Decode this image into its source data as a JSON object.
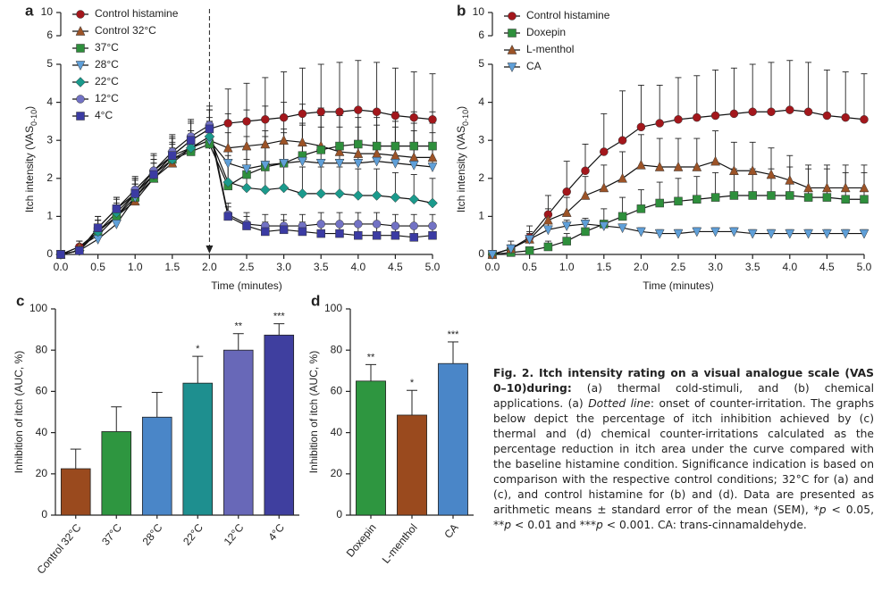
{
  "chart_data": [
    {
      "type": "line",
      "label": "a",
      "ylabel": [
        "Itch intensity (VAS",
        "0-10",
        ")"
      ],
      "xlabel": "Time (minutes)",
      "x": [
        0,
        0.25,
        0.5,
        0.75,
        1,
        1.25,
        1.5,
        1.75,
        2,
        2.25,
        2.5,
        2.75,
        3,
        3.25,
        3.5,
        3.75,
        4,
        4.25,
        4.5,
        4.75,
        5
      ],
      "xlim": [
        0,
        5
      ],
      "xticks": [
        {
          "value": 0,
          "label": "0.0"
        },
        0.5,
        {
          "value": 1,
          "label": "1.0"
        },
        1.5,
        {
          "value": 2,
          "label": "2.0"
        },
        2.5,
        {
          "value": 3,
          "label": "3.0"
        },
        3.5,
        {
          "value": 4,
          "label": "4.0"
        },
        4.5,
        {
          "value": 5,
          "label": "5.0"
        }
      ],
      "ylim": [
        0,
        5
      ],
      "yticks": [
        0,
        1,
        2,
        3,
        4,
        5
      ],
      "ylim_top": [
        6,
        10
      ],
      "yticks_top": [
        6,
        10
      ],
      "vline": 2,
      "series": [
        {
          "name": "Control histamine",
          "color": "#a3171c",
          "marker": "circle",
          "values": [
            0,
            0.2,
            0.5,
            1.0,
            1.6,
            2.2,
            2.6,
            3.0,
            3.3,
            3.45,
            3.5,
            3.55,
            3.6,
            3.7,
            3.75,
            3.75,
            3.8,
            3.75,
            3.65,
            3.6,
            3.55
          ],
          "errors": [
            0.1,
            0.15,
            0.3,
            0.35,
            0.4,
            0.45,
            0.5,
            0.5,
            0.5,
            0.9,
            1.0,
            1.1,
            1.2,
            1.2,
            1.25,
            1.3,
            1.3,
            1.3,
            1.25,
            1.2,
            1.2
          ]
        },
        {
          "name": "Control 32°C",
          "color": "#9c5327",
          "marker": "triangle-up",
          "values": [
            0,
            0.2,
            0.6,
            1.0,
            1.4,
            2.0,
            2.4,
            2.8,
            3.0,
            2.8,
            2.85,
            2.9,
            3.0,
            2.95,
            2.85,
            2.7,
            2.65,
            2.65,
            2.6,
            2.55,
            2.55
          ],
          "errors": [
            0.1,
            0.15,
            0.3,
            0.3,
            0.35,
            0.4,
            0.4,
            0.45,
            0.5,
            0.9,
            0.95,
            1.0,
            1.0,
            1.0,
            1.0,
            0.95,
            0.95,
            0.95,
            0.9,
            0.9,
            0.9
          ]
        },
        {
          "name": "37°C",
          "color": "#2e8f3c",
          "marker": "square",
          "values": [
            0,
            0.1,
            0.6,
            1.0,
            1.5,
            2.0,
            2.5,
            2.7,
            2.9,
            1.8,
            2.1,
            2.3,
            2.4,
            2.6,
            2.75,
            2.85,
            2.9,
            2.85,
            2.85,
            2.85,
            2.85
          ],
          "errors": [
            0.1,
            0.1,
            0.3,
            0.3,
            0.35,
            0.4,
            0.4,
            0.45,
            0.45,
            0.6,
            0.7,
            0.8,
            0.8,
            0.85,
            0.9,
            0.9,
            0.95,
            0.95,
            0.9,
            0.9,
            0.9
          ]
        },
        {
          "name": "28°C",
          "color": "#5f9fd8",
          "marker": "triangle-down",
          "values": [
            0,
            0.1,
            0.4,
            0.8,
            1.5,
            2.1,
            2.6,
            2.8,
            3.0,
            2.4,
            2.25,
            2.35,
            2.4,
            2.45,
            2.4,
            2.4,
            2.4,
            2.45,
            2.4,
            2.35,
            2.3
          ],
          "errors": [
            0.1,
            0.1,
            0.2,
            0.3,
            0.35,
            0.4,
            0.45,
            0.45,
            0.5,
            0.8,
            0.85,
            0.9,
            0.9,
            0.95,
            0.95,
            0.95,
            0.95,
            0.95,
            0.95,
            0.9,
            0.9
          ]
        },
        {
          "name": "22°C",
          "color": "#1b9a8c",
          "marker": "diamond",
          "values": [
            0,
            0.1,
            0.6,
            1.1,
            1.6,
            2.1,
            2.5,
            2.8,
            3.1,
            1.9,
            1.75,
            1.7,
            1.75,
            1.6,
            1.6,
            1.6,
            1.55,
            1.55,
            1.5,
            1.45,
            1.35
          ],
          "errors": [
            0.1,
            0.1,
            0.3,
            0.35,
            0.4,
            0.4,
            0.45,
            0.45,
            0.5,
            0.7,
            0.75,
            0.75,
            0.75,
            0.7,
            0.7,
            0.7,
            0.7,
            0.7,
            0.65,
            0.65,
            0.65
          ]
        },
        {
          "name": "12°C",
          "color": "#7272c4",
          "marker": "circle",
          "values": [
            0,
            0.1,
            0.7,
            1.2,
            1.7,
            2.2,
            2.7,
            3.1,
            3.4,
            1.05,
            0.8,
            0.75,
            0.75,
            0.75,
            0.8,
            0.8,
            0.8,
            0.8,
            0.75,
            0.75,
            0.75
          ],
          "errors": [
            0.1,
            0.1,
            0.3,
            0.3,
            0.35,
            0.4,
            0.45,
            0.45,
            0.5,
            0.3,
            0.3,
            0.3,
            0.3,
            0.3,
            0.3,
            0.3,
            0.3,
            0.3,
            0.3,
            0.3,
            0.3
          ]
        },
        {
          "name": "4°C",
          "color": "#3b3ba3",
          "marker": "square",
          "values": [
            0,
            0.1,
            0.7,
            1.2,
            1.6,
            2.1,
            2.6,
            3.0,
            3.3,
            1.0,
            0.75,
            0.6,
            0.65,
            0.6,
            0.55,
            0.55,
            0.5,
            0.5,
            0.5,
            0.45,
            0.5
          ],
          "errors": [
            0.1,
            0.1,
            0.3,
            0.3,
            0.35,
            0.4,
            0.45,
            0.45,
            0.5,
            0.25,
            0.25,
            0.25,
            0.25,
            0.25,
            0.25,
            0.25,
            0.25,
            0.25,
            0.25,
            0.25,
            0.25
          ]
        }
      ]
    },
    {
      "type": "line",
      "label": "b",
      "ylabel": [
        "Itch intensity (VAS",
        "0-10",
        ")"
      ],
      "xlabel": "Time (minutes)",
      "x": [
        0,
        0.25,
        0.5,
        0.75,
        1,
        1.25,
        1.5,
        1.75,
        2,
        2.25,
        2.5,
        2.75,
        3,
        3.25,
        3.5,
        3.75,
        4,
        4.25,
        4.5,
        4.75,
        5
      ],
      "xlim": [
        0,
        5
      ],
      "xticks": [
        {
          "value": 0,
          "label": "0.0"
        },
        0.5,
        {
          "value": 1,
          "label": "1.0"
        },
        1.5,
        {
          "value": 2,
          "label": "2.0"
        },
        2.5,
        {
          "value": 3,
          "label": "3.0"
        },
        3.5,
        {
          "value": 4,
          "label": "4.0"
        },
        4.5,
        {
          "value": 5,
          "label": "5.0"
        }
      ],
      "ylim": [
        0,
        5
      ],
      "yticks": [
        0,
        1,
        2,
        3,
        4,
        5
      ],
      "ylim_top": [
        6,
        10
      ],
      "yticks_top": [
        6,
        10
      ],
      "series": [
        {
          "name": "Control histamine",
          "color": "#a3171c",
          "marker": "circle",
          "values": [
            0,
            0.15,
            0.45,
            1.05,
            1.65,
            2.2,
            2.7,
            3.0,
            3.35,
            3.45,
            3.55,
            3.6,
            3.65,
            3.7,
            3.75,
            3.75,
            3.8,
            3.75,
            3.65,
            3.6,
            3.55
          ],
          "errors": [
            0.1,
            0.2,
            0.3,
            0.5,
            0.8,
            0.7,
            1.0,
            1.3,
            1.1,
            1.0,
            1.1,
            1.1,
            1.2,
            1.2,
            1.25,
            1.3,
            1.3,
            1.3,
            1.2,
            1.2,
            1.2
          ]
        },
        {
          "name": "Doxepin",
          "color": "#2e8f3c",
          "marker": "square",
          "values": [
            0,
            0.05,
            0.1,
            0.2,
            0.35,
            0.6,
            0.8,
            1.0,
            1.2,
            1.35,
            1.4,
            1.45,
            1.5,
            1.55,
            1.55,
            1.55,
            1.55,
            1.5,
            1.5,
            1.45,
            1.45
          ],
          "errors": [
            0.05,
            0.05,
            0.1,
            0.15,
            0.2,
            0.3,
            0.4,
            0.5,
            0.5,
            0.55,
            0.6,
            0.6,
            0.65,
            0.7,
            0.7,
            0.7,
            0.75,
            0.75,
            0.75,
            0.7,
            0.7
          ]
        },
        {
          "name": "L-menthol",
          "color": "#9c5327",
          "marker": "triangle-up",
          "values": [
            0,
            0.15,
            0.4,
            0.9,
            1.1,
            1.55,
            1.75,
            2.0,
            2.35,
            2.3,
            2.3,
            2.3,
            2.45,
            2.2,
            2.2,
            2.1,
            1.95,
            1.75,
            1.75,
            1.75,
            1.75
          ],
          "errors": [
            0.1,
            0.1,
            0.2,
            0.3,
            0.4,
            0.5,
            0.6,
            0.7,
            0.8,
            0.75,
            0.75,
            0.75,
            0.8,
            0.75,
            0.75,
            0.7,
            0.65,
            0.6,
            0.6,
            0.6,
            0.6
          ]
        },
        {
          "name": "CA",
          "color": "#5f9fd8",
          "marker": "triangle-down",
          "values": [
            0,
            0.15,
            0.4,
            0.65,
            0.75,
            0.8,
            0.75,
            0.7,
            0.6,
            0.55,
            0.55,
            0.6,
            0.6,
            0.6,
            0.55,
            0.55,
            0.55,
            0.55,
            0.55,
            0.55,
            0.55
          ],
          "errors": [
            0.05,
            0.1,
            0.15,
            0.2,
            0.15,
            0.15,
            0.1,
            0.1,
            0.1,
            0.1,
            0.1,
            0.1,
            0.1,
            0.1,
            0.1,
            0.1,
            0.1,
            0.1,
            0.1,
            0.1,
            0.1
          ]
        }
      ]
    },
    {
      "type": "bar",
      "label": "c",
      "ylabel": "Inhibition of itch (AUC, %)",
      "categories": [
        "Control 32°C",
        "37°C",
        "28°C",
        "22°C",
        "12°C",
        "4°C"
      ],
      "values": [
        22.5,
        40.5,
        47.5,
        64,
        80,
        87.3
      ],
      "errors": [
        9.5,
        12,
        12,
        13,
        8,
        5.5
      ],
      "significance": [
        null,
        null,
        null,
        "*",
        "**",
        "***"
      ],
      "colors": [
        "#9a4a1e",
        "#2e9640",
        "#4a86c8",
        "#1e8f8f",
        "#6868b8",
        "#3f3f9f"
      ],
      "ylim": [
        0,
        100
      ],
      "yticks": [
        0,
        20,
        40,
        60,
        80,
        100
      ]
    },
    {
      "type": "bar",
      "label": "d",
      "ylabel": "Inhibition of itch (AUC, %)",
      "categories": [
        "Doxepin",
        "L-menthol",
        "CA"
      ],
      "values": [
        65,
        48.5,
        73.5
      ],
      "errors": [
        8,
        12,
        10.5
      ],
      "significance": [
        "**",
        "*",
        "***"
      ],
      "colors": [
        "#2e9640",
        "#9a4a1e",
        "#4a86c8"
      ],
      "ylim": [
        0,
        100
      ],
      "yticks": [
        0,
        20,
        40,
        60,
        80,
        100
      ]
    }
  ],
  "caption": [
    {
      "text": "Fig. 2. Itch intensity rating on a visual analogue scale (VAS 0–10)during:",
      "style": "bold"
    },
    {
      "text": " (a) thermal cold-stimuli, and (b) chemical applications. (a) "
    },
    {
      "text": "Dotted line",
      "style": "italic"
    },
    {
      "text": ": onset of counter-irritation. The graphs below depict the percentage of itch inhibition achieved by (c) thermal and (d) chemical counter-irritations calculated as the percentage reduction in itch area under the curve compared with the baseline histamine condition. Significance indication is based on comparison with the respective control conditions; 32°C for (a) and (c), and control histamine for (b) and (d). Data are presented as arithmetic means ± standard error of the mean (SEM), *"
    },
    {
      "text": "p",
      "style": "italic"
    },
    {
      "text": " < 0.05, **"
    },
    {
      "text": "p",
      "style": "italic"
    },
    {
      "text": " < 0.01 and ***"
    },
    {
      "text": "p",
      "style": "italic"
    },
    {
      "text": " < 0.001. CA: trans-cinnamaldehyde."
    }
  ]
}
